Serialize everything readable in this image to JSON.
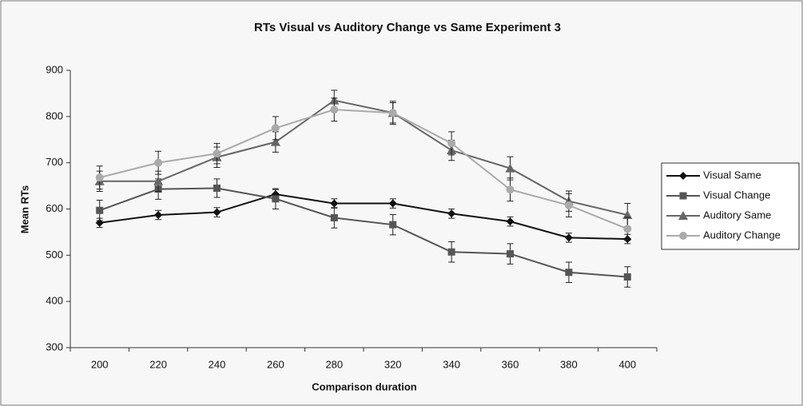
{
  "chart_data": {
    "type": "line",
    "title": "RTs Visual vs Auditory Change vs Same Experiment 3",
    "xlabel": "Comparison duration",
    "ylabel": "Mean RTs",
    "categories": [
      "200",
      "220",
      "240",
      "260",
      "280",
      "320",
      "340",
      "360",
      "380",
      "400"
    ],
    "ylim": [
      300,
      900
    ],
    "yticks": [
      300,
      400,
      500,
      600,
      700,
      800,
      900
    ],
    "grid": false,
    "legend": "right",
    "series": [
      {
        "name": "Visual Same",
        "color": "#111111",
        "marker": "diamond",
        "values": [
          570,
          587,
          593,
          632,
          612,
          612,
          590,
          573,
          538,
          535
        ],
        "errors": [
          10,
          10,
          10,
          10,
          10,
          10,
          10,
          10,
          10,
          10
        ]
      },
      {
        "name": "Visual Change",
        "color": "#555555",
        "marker": "square",
        "values": [
          597,
          643,
          645,
          622,
          581,
          566,
          507,
          503,
          463,
          453
        ],
        "errors": [
          22,
          22,
          20,
          22,
          22,
          22,
          22,
          22,
          22,
          22
        ]
      },
      {
        "name": "Auditory Same",
        "color": "#666666",
        "marker": "triangle",
        "values": [
          660,
          660,
          712,
          745,
          835,
          808,
          727,
          688,
          617,
          587
        ],
        "errors": [
          22,
          22,
          22,
          22,
          22,
          22,
          22,
          25,
          22,
          25
        ]
      },
      {
        "name": "Auditory Change",
        "color": "#aaaaaa",
        "marker": "circle",
        "values": [
          668,
          700,
          720,
          775,
          815,
          808,
          742,
          642,
          608,
          557
        ],
        "errors": [
          25,
          25,
          22,
          25,
          25,
          25,
          25,
          25,
          25,
          25
        ]
      }
    ]
  }
}
